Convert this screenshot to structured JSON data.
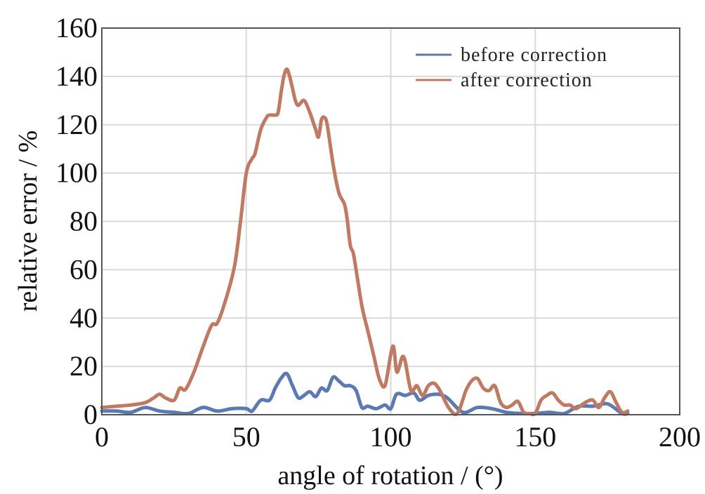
{
  "chart_data": {
    "type": "line",
    "xlabel": "angle of rotation / (°)",
    "ylabel": "relative error / %",
    "xlim": [
      0,
      200
    ],
    "ylim": [
      0,
      160
    ],
    "xticks": [
      0,
      50,
      100,
      150,
      200
    ],
    "yticks": [
      0,
      20,
      40,
      60,
      80,
      100,
      120,
      140,
      160
    ],
    "grid": true,
    "legend_position": "top-right",
    "series": [
      {
        "name": "before correction",
        "color": "#5b79b3",
        "x": [
          0,
          5,
          10,
          15,
          20,
          25,
          30,
          35,
          40,
          45,
          50,
          52,
          55,
          58,
          60,
          62,
          64,
          66,
          68,
          70,
          72,
          74,
          76,
          78,
          80,
          82,
          84,
          86,
          88,
          90,
          92,
          95,
          98,
          100,
          102,
          105,
          108,
          110,
          113,
          116,
          118,
          120,
          125,
          130,
          135,
          140,
          145,
          150,
          155,
          160,
          165,
          170,
          175,
          180,
          182
        ],
        "y": [
          1.5,
          1.5,
          1.0,
          3.0,
          1.5,
          1.0,
          0.5,
          3.0,
          1.5,
          2.5,
          2.5,
          1.5,
          6.0,
          6.0,
          11.0,
          15.0,
          17.0,
          12.0,
          7.0,
          8.0,
          9.5,
          7.5,
          11.0,
          10.0,
          15.5,
          14.0,
          12.0,
          12.0,
          10.0,
          3.0,
          3.5,
          2.5,
          4.0,
          2.5,
          8.5,
          8.0,
          9.0,
          6.0,
          8.0,
          8.5,
          8.0,
          6.5,
          1.0,
          3.0,
          2.5,
          1.0,
          0.5,
          0.5,
          1.0,
          0.5,
          3.5,
          3.5,
          4.5,
          0.5,
          0.5
        ]
      },
      {
        "name": "after correction",
        "color": "#c07a62",
        "x": [
          0,
          5,
          10,
          15,
          18,
          20,
          22,
          25,
          27,
          29,
          32,
          35,
          38,
          40,
          43,
          46,
          48,
          50,
          52,
          53,
          55,
          57,
          58,
          60,
          61,
          62,
          63,
          64,
          65,
          66,
          67,
          68,
          70,
          72,
          74,
          75,
          76,
          77,
          78,
          80,
          82,
          84,
          85,
          86,
          87,
          88,
          90,
          92,
          94,
          96,
          98,
          100,
          101,
          102,
          103,
          104,
          105,
          107,
          109,
          111,
          113,
          115,
          117,
          120,
          123,
          126,
          128,
          130,
          132,
          134,
          136,
          138,
          140,
          142,
          144,
          146,
          148,
          150,
          152,
          154,
          156,
          158,
          160,
          162,
          164,
          166,
          168,
          170,
          172,
          174,
          176,
          178,
          180,
          182
        ],
        "y": [
          3.0,
          3.5,
          4.0,
          5.0,
          7.0,
          8.5,
          7.0,
          6.0,
          11.0,
          10.5,
          18.0,
          28.0,
          37.0,
          38.0,
          48.0,
          62.0,
          80.0,
          100.0,
          106.0,
          108.0,
          118.0,
          123.0,
          124.0,
          124.0,
          125.0,
          133.0,
          140.0,
          143.0,
          140.0,
          135.0,
          130.0,
          128.0,
          130.0,
          125.0,
          118.0,
          115.0,
          122.0,
          123.0,
          120.0,
          104.0,
          92.0,
          87.0,
          80.0,
          70.0,
          67.0,
          60.0,
          45.0,
          35.0,
          25.0,
          15.0,
          12.0,
          25.0,
          28.0,
          18.0,
          20.0,
          24.0,
          22.0,
          10.0,
          12.0,
          8.0,
          12.0,
          13.0,
          10.0,
          3.0,
          0.5,
          10.0,
          14.0,
          15.0,
          11.0,
          10.0,
          12.0,
          5.0,
          3.0,
          4.0,
          5.5,
          1.0,
          0.5,
          0.5,
          6.0,
          8.0,
          9.0,
          6.0,
          4.0,
          4.0,
          2.5,
          4.0,
          5.5,
          6.0,
          3.0,
          7.0,
          9.5,
          5.0,
          1.0,
          1.5
        ]
      }
    ]
  }
}
